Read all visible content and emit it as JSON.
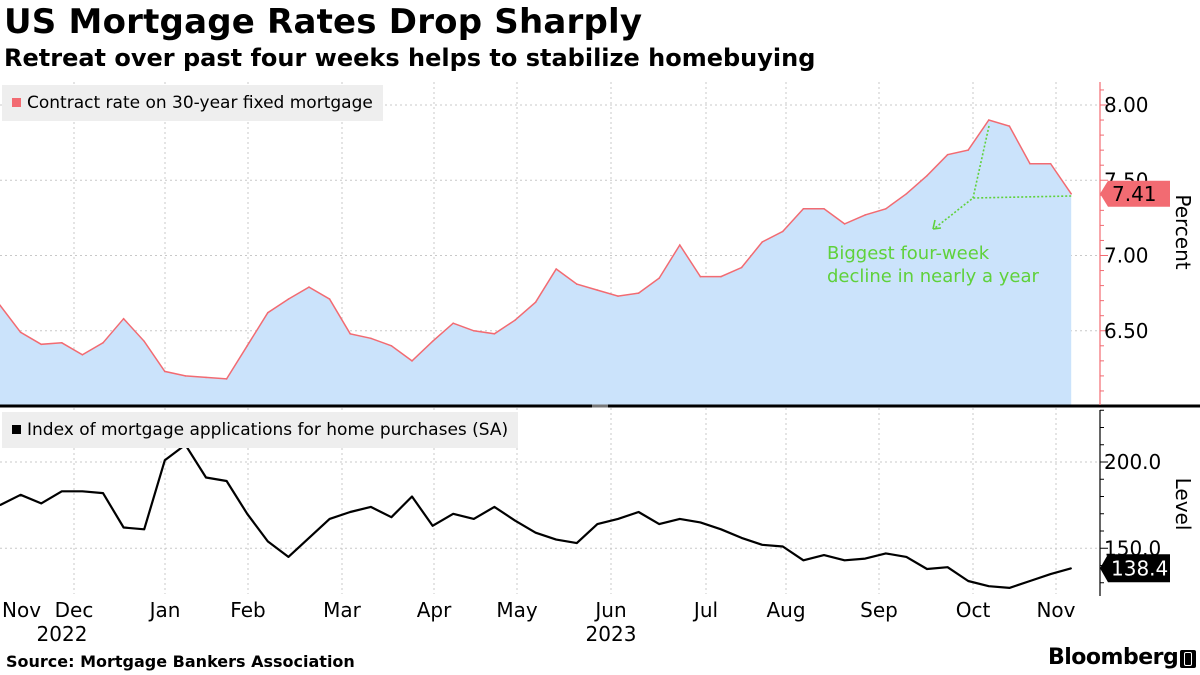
{
  "title": "US Mortgage Rates Drop Sharply",
  "subtitle": "Retreat over past four weeks helps to stabilize homebuying",
  "source": "Source: Mortgage Bankers Association",
  "brand": "Bloomberg",
  "colors": {
    "rate_line": "#f26b72",
    "rate_fill": "#cbe3fb",
    "apps_line": "#000000",
    "annotation": "#5fd13b",
    "grid": "#c8c8c8"
  },
  "chart_data": [
    {
      "type": "area",
      "title": "Contract rate on 30-year fixed mortgage",
      "legend": "Contract rate on 30-year fixed mortgage",
      "ylabel": "Percent",
      "ylim": [
        6.0,
        8.2
      ],
      "yticks": [
        6.5,
        7.0,
        7.5,
        8.0
      ],
      "ytick_labels": [
        "6.50",
        "7.00",
        "7.50",
        "8.00"
      ],
      "last_value_label": "7.41",
      "annotation": [
        "Biggest four-week",
        "decline in nearly a year"
      ],
      "series": [
        {
          "name": "Contract rate on 30-year fixed mortgage",
          "values": [
            6.67,
            6.49,
            6.41,
            6.42,
            6.34,
            6.42,
            6.58,
            6.43,
            6.23,
            6.2,
            6.19,
            6.18,
            6.4,
            6.62,
            6.71,
            6.79,
            6.71,
            6.48,
            6.45,
            6.4,
            6.3,
            6.43,
            6.55,
            6.5,
            6.48,
            6.57,
            6.69,
            6.91,
            6.81,
            6.77,
            6.73,
            6.75,
            6.85,
            7.07,
            6.86,
            6.86,
            6.92,
            7.09,
            7.16,
            7.31,
            7.31,
            7.21,
            7.27,
            7.31,
            7.41,
            7.53,
            7.67,
            7.7,
            7.9,
            7.86,
            7.61,
            7.61,
            7.41
          ]
        }
      ]
    },
    {
      "type": "line",
      "title": "Index of mortgage applications for home purchases (SA)",
      "legend": "Index of mortgage applications for home purchases (SA)",
      "ylabel": "Level",
      "ylim": [
        120,
        230
      ],
      "yticks": [
        150,
        200
      ],
      "ytick_labels": [
        "150.0",
        "200.0"
      ],
      "last_value_label": "138.4",
      "series": [
        {
          "name": "Index of mortgage applications for home purchases (SA)",
          "values": [
            175.0,
            181.0,
            176.0,
            183.0,
            183.0,
            182.0,
            162.0,
            161.0,
            201.0,
            210.0,
            191.0,
            189.0,
            170.0,
            154.0,
            145.0,
            156.0,
            167.0,
            171.0,
            174.0,
            168.0,
            180.0,
            163.0,
            170.0,
            167.0,
            174.0,
            166.0,
            159.0,
            155.0,
            153.0,
            164.0,
            167.0,
            171.0,
            164.0,
            167.0,
            165.0,
            161.0,
            156.0,
            152.0,
            151.0,
            143.0,
            146.0,
            143.0,
            144.0,
            147.0,
            145.0,
            138.0,
            139.0,
            131.0,
            128.0,
            127.0,
            131.0,
            135.0,
            138.4
          ]
        }
      ]
    }
  ],
  "x_axis": {
    "months": [
      "Nov",
      "Dec",
      "Jan",
      "Feb",
      "Mar",
      "Apr",
      "May",
      "Jun",
      "Jul",
      "Aug",
      "Sep",
      "Oct",
      "Nov"
    ],
    "years": [
      "2022",
      "2023"
    ]
  }
}
